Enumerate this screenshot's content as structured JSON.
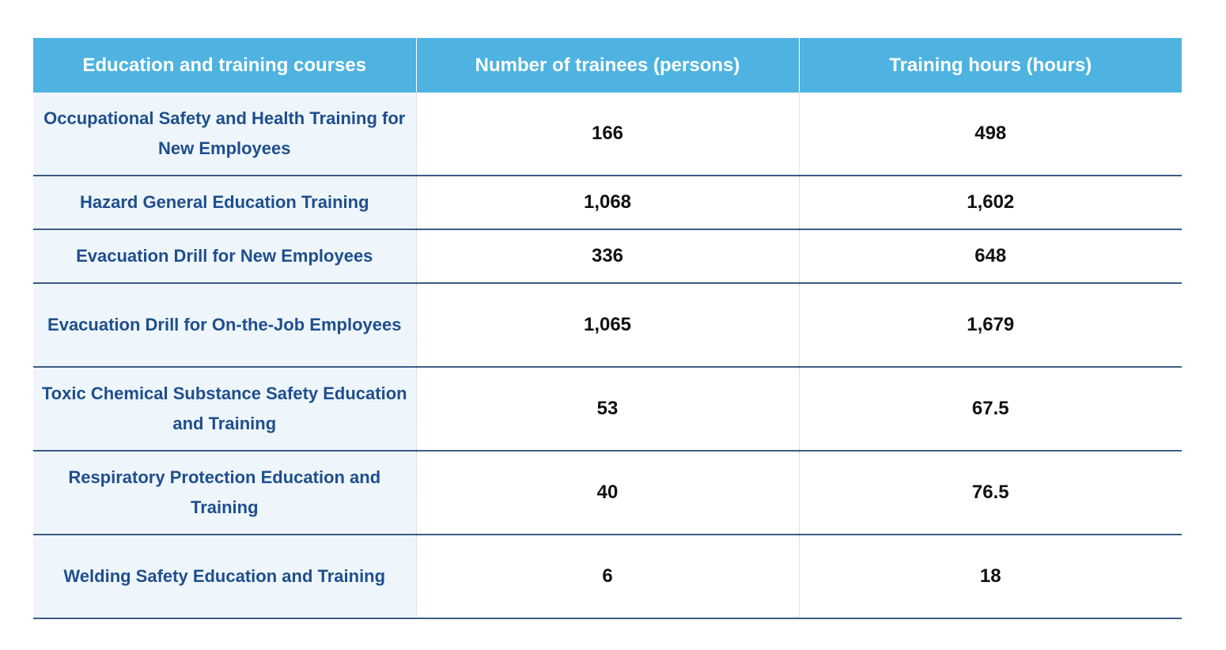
{
  "table": {
    "header": [
      "Education and training courses",
      "Number of trainees (persons)",
      "Training hours (hours)"
    ],
    "rows": [
      [
        "Occupational Safety and Health Training for New Employees",
        "166",
        "498"
      ],
      [
        "Hazard General Education Training",
        "1,068",
        "1,602"
      ],
      [
        "Evacuation Drill for New Employees",
        "336",
        "648"
      ],
      [
        "Evacuation Drill for On-the-Job Employees",
        "1,065",
        "1,679"
      ],
      [
        "Toxic Chemical Substance Safety Education and Training",
        "53",
        "67.5"
      ],
      [
        "Respiratory Protection Education and Training",
        "40",
        "76.5"
      ],
      [
        "Welding Safety Education and Training",
        "6",
        "18"
      ]
    ]
  }
}
